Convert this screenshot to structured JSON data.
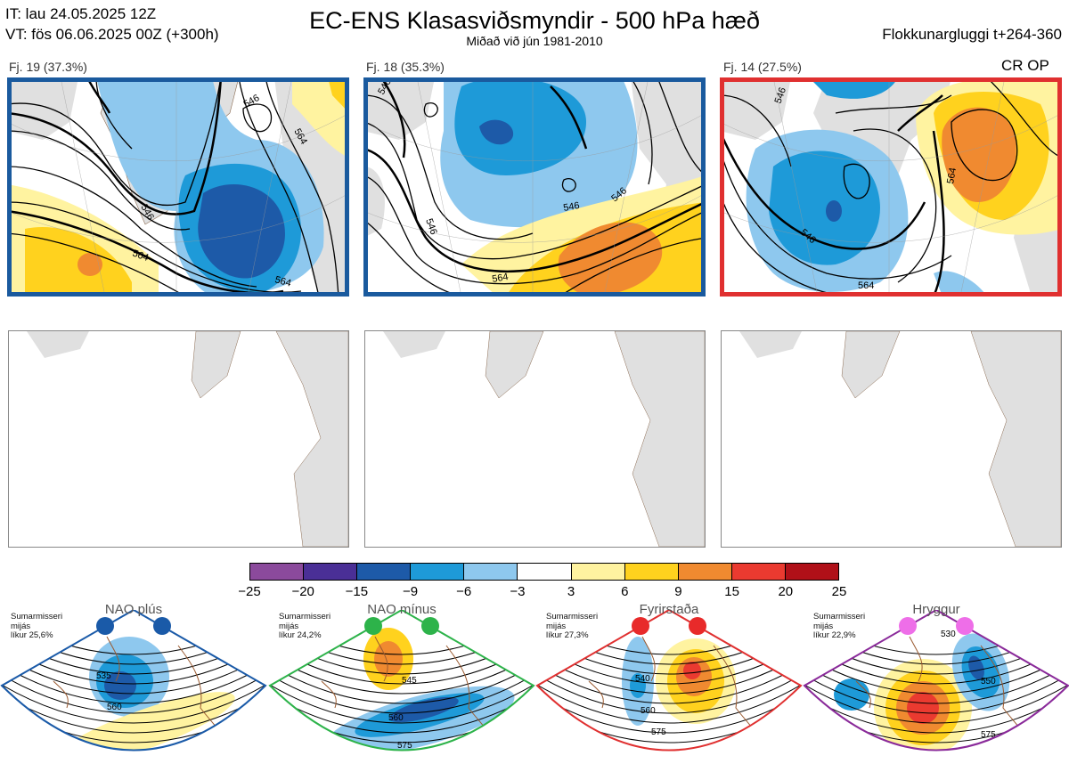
{
  "header": {
    "it_line": "IT: lau 24.05.2025 12Z",
    "vt_line": "VT: fös 06.06.2025 00Z  (+300h)",
    "title": "EC-ENS Klasasviðsmyndir - 500 hPa hæð",
    "subtitle": "Miðað við jún 1981-2010",
    "window": "Flokkunargluggi t+264-360"
  },
  "clusters": [
    {
      "label": "Fj. 19 (37.3%)",
      "frame_color": "#1a5a9e",
      "contour_labels": [
        "546",
        "564",
        "564",
        "564",
        "546"
      ]
    },
    {
      "label": "Fj. 18 (35.3%)",
      "frame_color": "#1a5a9e",
      "contour_labels": [
        "546",
        "546",
        "546",
        "564",
        "546"
      ]
    },
    {
      "label": "Fj. 14 (27.5%)",
      "frame_color": "#e03030",
      "contour_labels": [
        "546",
        "546",
        "564",
        "564"
      ],
      "extra": "CR OP"
    }
  ],
  "colorbar": {
    "colors": [
      "#8b4a9c",
      "#4a2f96",
      "#1d5aa8",
      "#1e9ad8",
      "#8ec8ee",
      "#ffffff",
      "#fff3a0",
      "#ffd21e",
      "#f08a30",
      "#ea3a30",
      "#b01018"
    ],
    "ticks": [
      "−25",
      "−20",
      "−15",
      "−9",
      "−6",
      "−3",
      "3",
      "6",
      "9",
      "15",
      "20",
      "25"
    ]
  },
  "regimes": [
    {
      "name": "NAO plús",
      "info": [
        "Sumarmisseri",
        "mijás",
        "líkur 25,6%"
      ],
      "color": "#1a5aa8",
      "dot_color": "#1a5aa8",
      "labels": [
        "535",
        "560"
      ]
    },
    {
      "name": "NAO mínus",
      "info": [
        "Sumarmisseri",
        "mijás",
        "líkur 24,2%"
      ],
      "color": "#2db34a",
      "dot_color": "#2db34a",
      "labels": [
        "545",
        "560",
        "575"
      ]
    },
    {
      "name": "Fyrirstaða",
      "info": [
        "Sumarmisseri",
        "mijás",
        "líkur 27,3%"
      ],
      "color": "#e03030",
      "dot_color": "#e82a2a",
      "labels": [
        "540",
        "560",
        "575"
      ]
    },
    {
      "name": "Hryggur",
      "info": [
        "Sumarmisseri",
        "mijás",
        "líkur 22,9%"
      ],
      "color": "#8a2a9a",
      "dot_color": "#ee6ee8",
      "labels": [
        "530",
        "550",
        "575"
      ]
    }
  ]
}
